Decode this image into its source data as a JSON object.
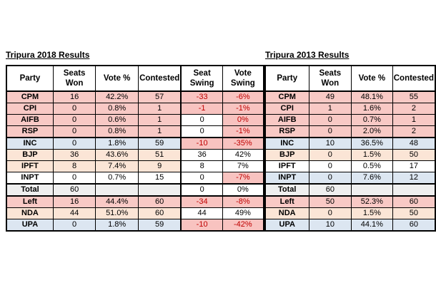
{
  "colors": {
    "row_pink": "#f8c9c5",
    "row_blue": "#dce6f1",
    "row_peach": "#fbe5d6",
    "row_gray": "#efefef",
    "negative_cell_bg": "#f8c3c0",
    "negative_text": "#c00000",
    "border": "#000000",
    "background": "#ffffff"
  },
  "tables": [
    {
      "title": "Tripura 2018 Results",
      "columns": [
        [
          "Party"
        ],
        [
          "Seats",
          "Won"
        ],
        [
          "Vote %"
        ],
        [
          "Contested"
        ],
        [
          "Seat",
          "Swing"
        ],
        [
          "Vote",
          "Swing"
        ]
      ],
      "rows": [
        {
          "cells": [
            "CPM",
            "16",
            "42.2%",
            "57",
            "-33",
            "-6%"
          ],
          "color": "pink",
          "styles": [
            null,
            null,
            null,
            null,
            "neg",
            "neg"
          ],
          "thick_top": false
        },
        {
          "cells": [
            "CPI",
            "0",
            "0.8%",
            "1",
            "-1",
            "-1%"
          ],
          "color": "pink",
          "styles": [
            null,
            null,
            null,
            null,
            "neg",
            "neg"
          ],
          "thick_top": false
        },
        {
          "cells": [
            "AIFB",
            "0",
            "0.6%",
            "1",
            "0",
            "0%"
          ],
          "color": "pink",
          "styles": [
            null,
            null,
            null,
            null,
            "plain",
            "neg"
          ],
          "thick_top": false
        },
        {
          "cells": [
            "RSP",
            "0",
            "0.8%",
            "1",
            "0",
            "-1%"
          ],
          "color": "pink",
          "styles": [
            null,
            null,
            null,
            null,
            "plain",
            "neg"
          ],
          "thick_top": false
        },
        {
          "cells": [
            "INC",
            "0",
            "1.8%",
            "59",
            "-10",
            "-35%"
          ],
          "color": "blue",
          "styles": [
            null,
            null,
            null,
            null,
            "neg",
            "neg"
          ],
          "thick_top": true
        },
        {
          "cells": [
            "BJP",
            "36",
            "43.6%",
            "51",
            "36",
            "42%"
          ],
          "color": "peach",
          "styles": [
            null,
            null,
            null,
            null,
            "plain",
            "plain"
          ],
          "thick_top": false
        },
        {
          "cells": [
            "IPFT",
            "8",
            "7.4%",
            "9",
            "8",
            "7%"
          ],
          "color": "peach",
          "styles": [
            null,
            null,
            null,
            null,
            "plain",
            "plain"
          ],
          "thick_top": false
        },
        {
          "cells": [
            "INPT",
            "0",
            "0.7%",
            "15",
            "0",
            "-7%"
          ],
          "color": "white",
          "styles": [
            null,
            null,
            null,
            null,
            "plain",
            "neg"
          ],
          "thick_top": false
        },
        {
          "cells": [
            "Total",
            "60",
            "",
            "",
            "0",
            "0%"
          ],
          "color": "gray",
          "styles": [
            null,
            null,
            null,
            null,
            "plain",
            "plain"
          ],
          "thick_top": true
        },
        {
          "cells": [
            "Left",
            "16",
            "44.4%",
            "60",
            "-34",
            "-8%"
          ],
          "color": "pink",
          "styles": [
            null,
            null,
            null,
            null,
            "neg",
            "neg"
          ],
          "thick_top": true
        },
        {
          "cells": [
            "NDA",
            "44",
            "51.0%",
            "60",
            "44",
            "49%"
          ],
          "color": "peach",
          "styles": [
            null,
            null,
            null,
            null,
            "plain",
            "plain"
          ],
          "thick_top": false
        },
        {
          "cells": [
            "UPA",
            "0",
            "1.8%",
            "59",
            "-10",
            "-42%"
          ],
          "color": "blue",
          "styles": [
            null,
            null,
            null,
            null,
            "neg",
            "neg"
          ],
          "thick_top": false
        }
      ]
    },
    {
      "title": "Tripura 2013 Results",
      "columns": [
        [
          "Party"
        ],
        [
          "Seats",
          "Won"
        ],
        [
          "Vote %"
        ],
        [
          "Contested"
        ]
      ],
      "rows": [
        {
          "cells": [
            "CPM",
            "49",
            "48.1%",
            "55"
          ],
          "color": "pink",
          "styles": [
            null,
            null,
            null,
            null
          ],
          "thick_top": false
        },
        {
          "cells": [
            "CPI",
            "1",
            "1.6%",
            "2"
          ],
          "color": "pink",
          "styles": [
            null,
            null,
            null,
            null
          ],
          "thick_top": false
        },
        {
          "cells": [
            "AIFB",
            "0",
            "0.7%",
            "1"
          ],
          "color": "pink",
          "styles": [
            null,
            null,
            null,
            null
          ],
          "thick_top": false
        },
        {
          "cells": [
            "RSP",
            "0",
            "2.0%",
            "2"
          ],
          "color": "pink",
          "styles": [
            null,
            null,
            null,
            null
          ],
          "thick_top": false
        },
        {
          "cells": [
            "INC",
            "10",
            "36.5%",
            "48"
          ],
          "color": "blue",
          "styles": [
            null,
            null,
            null,
            null
          ],
          "thick_top": true
        },
        {
          "cells": [
            "BJP",
            "0",
            "1.5%",
            "50"
          ],
          "color": "peach",
          "styles": [
            null,
            null,
            null,
            null
          ],
          "thick_top": false
        },
        {
          "cells": [
            "IPFT",
            "0",
            "0.5%",
            "17"
          ],
          "color": "white",
          "styles": [
            null,
            null,
            null,
            null
          ],
          "thick_top": false
        },
        {
          "cells": [
            "INPT",
            "0",
            "7.6%",
            "12"
          ],
          "color": "blue",
          "styles": [
            null,
            null,
            null,
            null
          ],
          "thick_top": false
        },
        {
          "cells": [
            "Total",
            "60",
            "",
            ""
          ],
          "color": "gray",
          "styles": [
            null,
            null,
            null,
            null
          ],
          "thick_top": true
        },
        {
          "cells": [
            "Left",
            "50",
            "52.3%",
            "60"
          ],
          "color": "pink",
          "styles": [
            null,
            null,
            null,
            null
          ],
          "thick_top": true
        },
        {
          "cells": [
            "NDA",
            "0",
            "1.5%",
            "50"
          ],
          "color": "peach",
          "styles": [
            null,
            null,
            null,
            null
          ],
          "thick_top": false
        },
        {
          "cells": [
            "UPA",
            "10",
            "44.1%",
            "60"
          ],
          "color": "blue",
          "styles": [
            null,
            null,
            null,
            null
          ],
          "thick_top": false
        }
      ]
    }
  ]
}
